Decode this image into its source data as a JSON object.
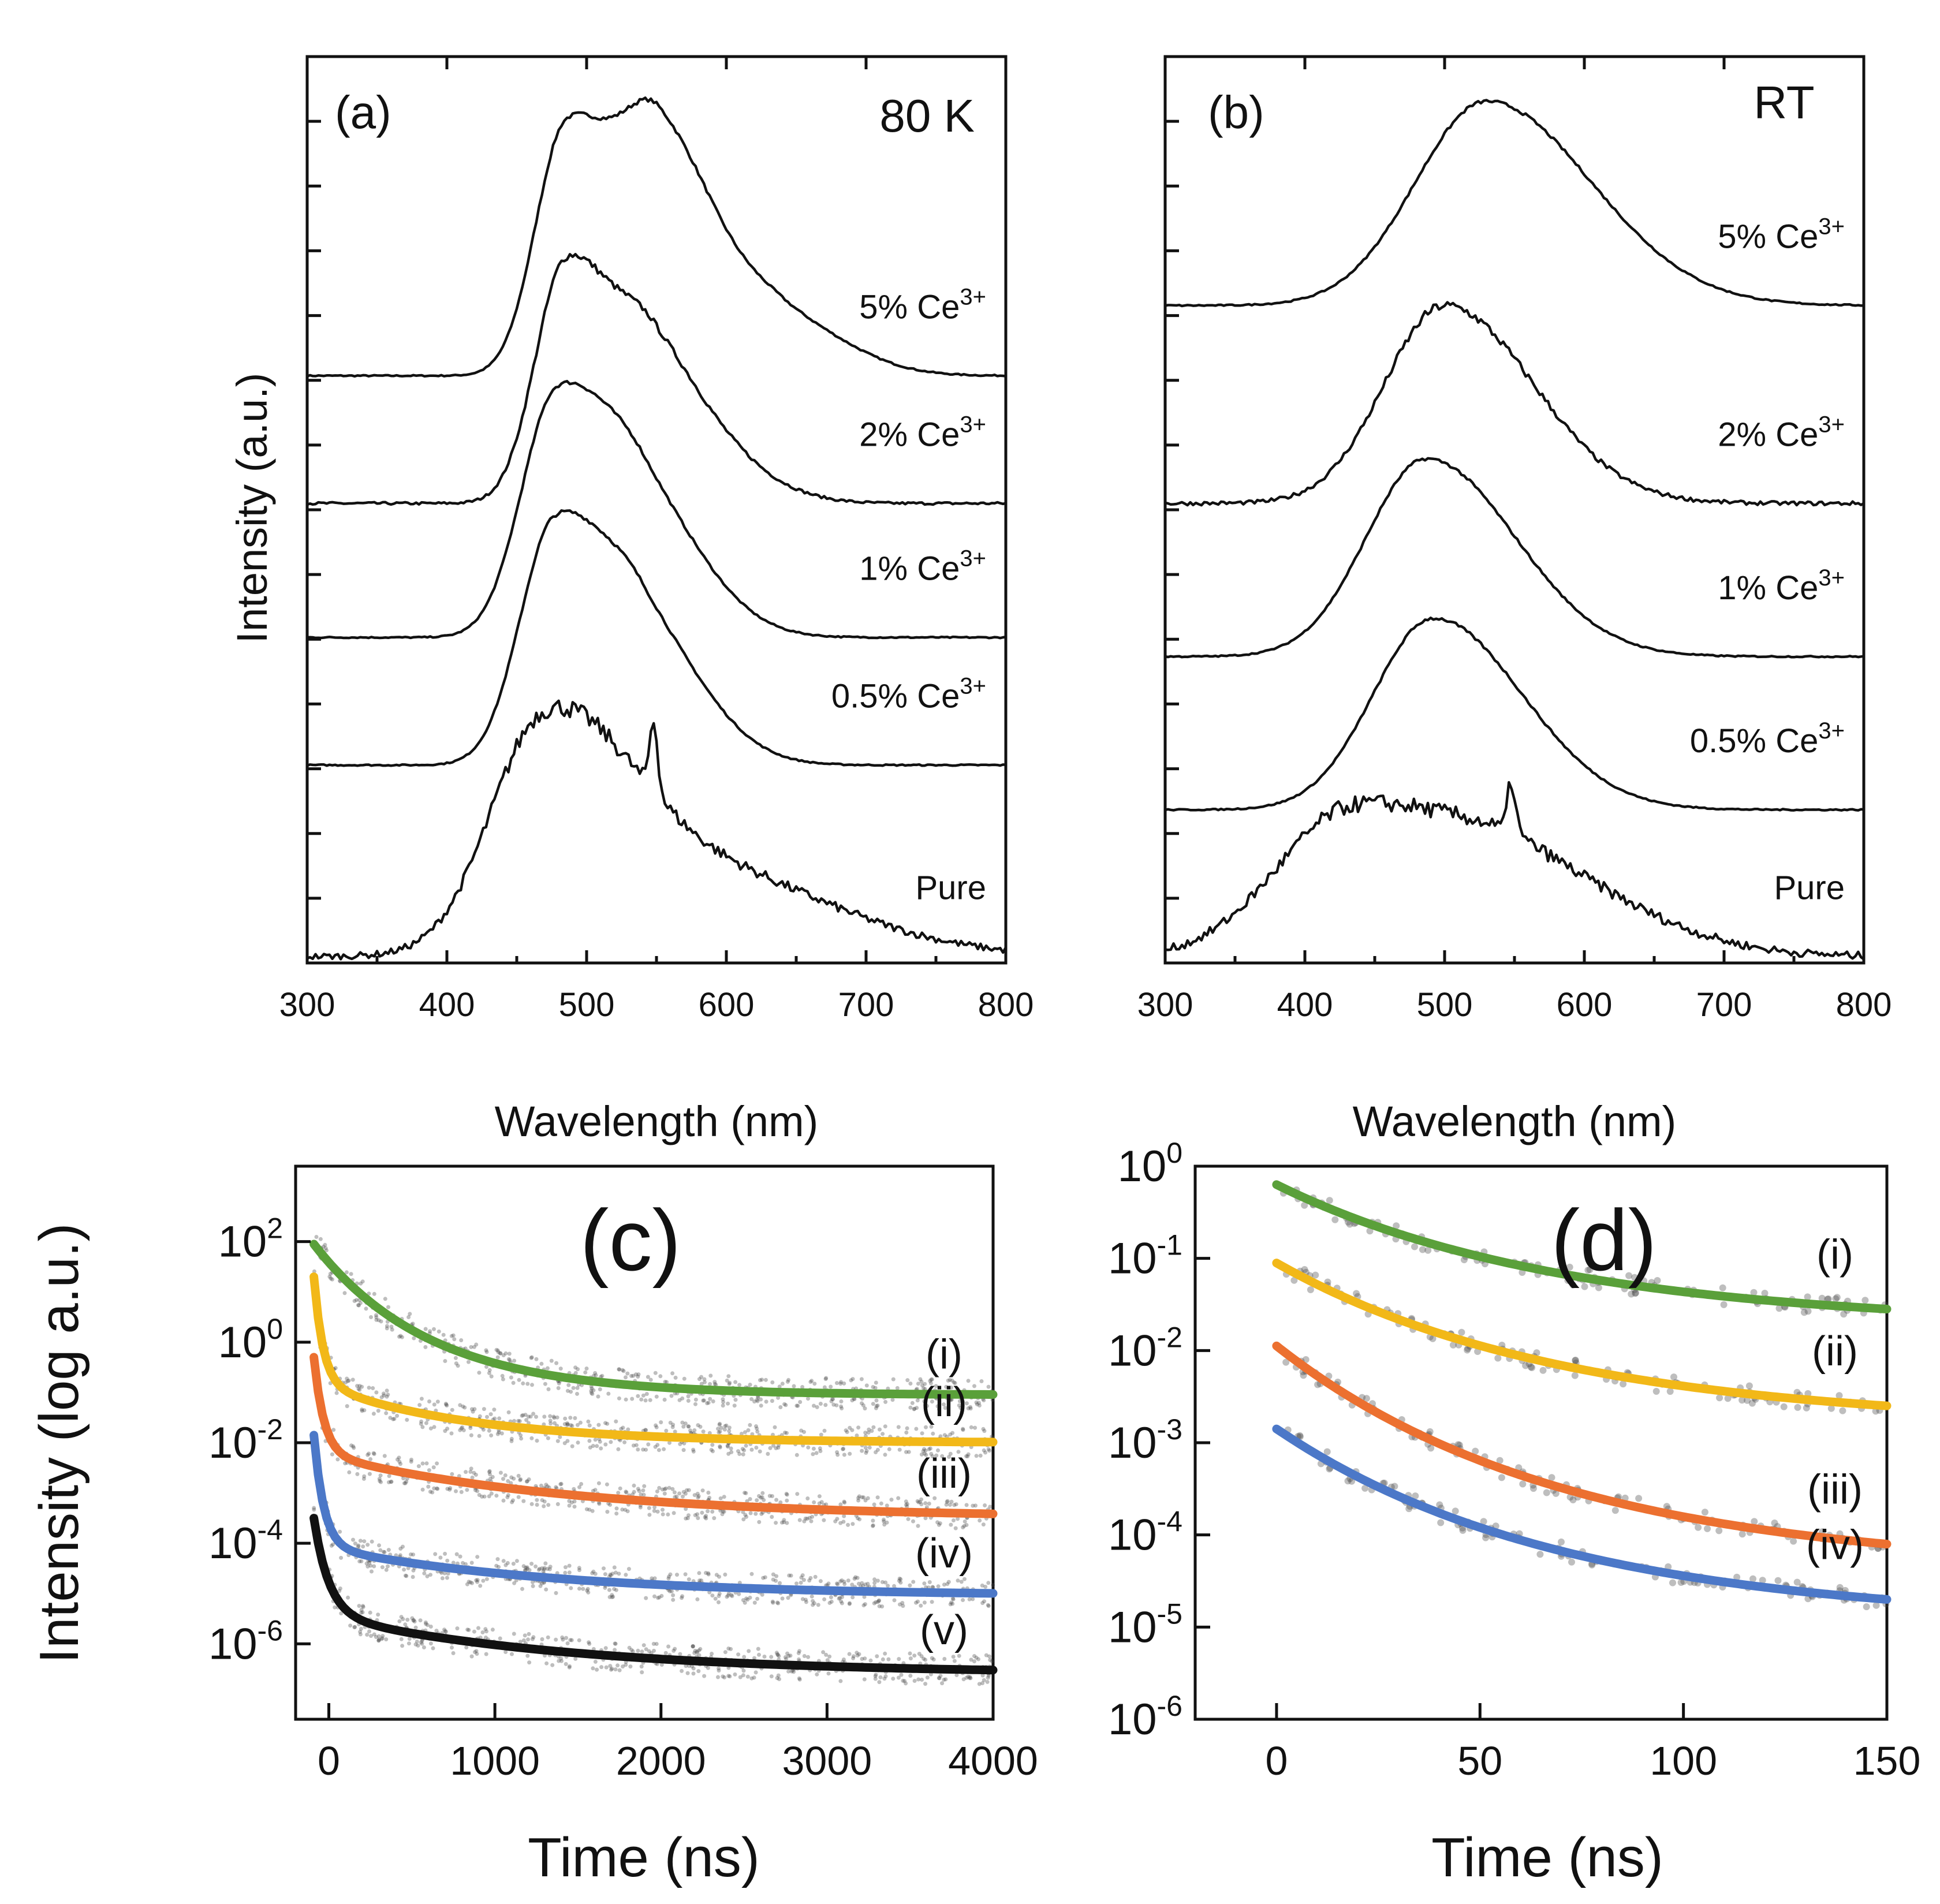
{
  "chart_data": [
    {
      "id": "a",
      "type": "line",
      "panel_label": "(a)",
      "condition": "80 K",
      "xlabel": "Wavelength (nm)",
      "ylabel": "Intensity (a.u.)",
      "xlim": [
        300,
        800
      ],
      "xticks": [
        "300",
        "400",
        "500",
        "600",
        "700",
        "800"
      ],
      "series": [
        {
          "name": "5% Ce",
          "sup": "3+",
          "offset": 4.6,
          "peaks": [
            [
              485,
              1.9,
              28
            ],
            [
              552,
              1.88,
              36
            ],
            [
              640,
              0.42,
              40
            ]
          ],
          "noise": 0.01
        },
        {
          "name": "2% Ce",
          "sup": "3+",
          "offset": 3.6,
          "peaks": [
            [
              485,
              1.85,
              28
            ],
            [
              548,
              1.15,
              35
            ],
            [
              620,
              0.1,
              30
            ]
          ],
          "noise": 0.02
        },
        {
          "name": "1% Ce",
          "sup": "3+",
          "offset": 2.55,
          "peaks": [
            [
              478,
              1.85,
              32
            ],
            [
              540,
              1.0,
              38
            ]
          ],
          "noise": 0.01
        },
        {
          "name": "0.5% Ce",
          "sup": "3+",
          "offset": 1.55,
          "peaks": [
            [
              477,
              1.85,
              32
            ],
            [
              540,
              1.0,
              38
            ]
          ],
          "noise": 0.01
        },
        {
          "name": "Pure",
          "sup": "",
          "offset": 0.05,
          "peaks": [
            [
              468,
              1.6,
              48
            ],
            [
              560,
              0.75,
              90
            ]
          ],
          "noise": 0.05,
          "spike": [
            548,
            0.55
          ]
        }
      ]
    },
    {
      "id": "b",
      "type": "line",
      "panel_label": "(b)",
      "condition": "RT",
      "xlabel": "Wavelength (nm)",
      "ylabel": "",
      "xlim": [
        300,
        800
      ],
      "xticks": [
        "300",
        "400",
        "500",
        "600",
        "700",
        "800"
      ],
      "series": [
        {
          "name": "5% Ce",
          "sup": "3+",
          "offset": 5.15,
          "peaks": [
            [
              530,
              1.6,
              65
            ]
          ],
          "noise": 0.01
        },
        {
          "name": "2% Ce",
          "sup": "3+",
          "offset": 3.6,
          "peaks": [
            [
              500,
              1.55,
              55
            ]
          ],
          "noise": 0.03
        },
        {
          "name": "1% Ce",
          "sup": "3+",
          "offset": 2.4,
          "peaks": [
            [
              487,
              1.55,
              55
            ]
          ],
          "noise": 0.01
        },
        {
          "name": "0.5% Ce",
          "sup": "3+",
          "offset": 1.2,
          "peaks": [
            [
              492,
              1.5,
              55
            ]
          ],
          "noise": 0.01
        },
        {
          "name": "Pure",
          "sup": "",
          "offset": 0.05,
          "peaks": [
            [
              435,
              1.15,
              70
            ],
            [
              560,
              0.55,
              70
            ]
          ],
          "noise": 0.06,
          "spike": [
            548,
            0.4
          ]
        }
      ]
    },
    {
      "id": "c",
      "type": "scatter",
      "panel_label": "(c)",
      "xlabel": "Time (ns)",
      "ylabel": "Intensity (log a.u.)",
      "xlim": [
        -200,
        4000
      ],
      "ylim_log10": [
        -7.5,
        3.5
      ],
      "xticks": [
        "0",
        "1000",
        "2000",
        "3000",
        "4000"
      ],
      "yticks": [
        {
          "base": "10",
          "exp": "2"
        },
        {
          "base": "10",
          "exp": "0"
        },
        {
          "base": "10",
          "exp": "-2"
        },
        {
          "base": "10",
          "exp": "-4"
        },
        {
          "base": "10",
          "exp": "-6"
        }
      ],
      "series": [
        {
          "name": "(i)",
          "color": "#5aa03a",
          "start_log": 1.95,
          "tail_log": -1.05,
          "fast_amp": 0.0,
          "fast_tau": 1,
          "tau": 700
        },
        {
          "name": "(ii)",
          "color": "#f2b818",
          "start_log": 1.3,
          "tail_log": -2.0,
          "fast_amp": 2.1,
          "fast_tau": 55,
          "tau": 900
        },
        {
          "name": "(iii)",
          "color": "#ec7030",
          "start_log": -0.3,
          "tail_log": -3.5,
          "fast_amp": 1.9,
          "fast_tau": 60,
          "tau": 1500
        },
        {
          "name": "(iv)",
          "color": "#4c78c8",
          "start_log": -1.85,
          "tail_log": -5.05,
          "fast_amp": 2.2,
          "fast_tau": 60,
          "tau": 1400
        },
        {
          "name": "(v)",
          "color": "#111111",
          "start_log": -3.5,
          "tail_log": -6.6,
          "fast_amp": 1.9,
          "fast_tau": 90,
          "tau": 1500
        }
      ]
    },
    {
      "id": "d",
      "type": "scatter",
      "panel_label": "(d)",
      "xlabel": "Time (ns)",
      "ylabel": "",
      "xlim": [
        -20,
        150
      ],
      "ylim_log10": [
        -6,
        0
      ],
      "xticks": [
        "0",
        "50",
        "100",
        "150"
      ],
      "yticks": [
        {
          "base": "10",
          "exp": "0"
        },
        {
          "base": "10",
          "exp": "-1"
        },
        {
          "base": "10",
          "exp": "-2"
        },
        {
          "base": "10",
          "exp": "-3"
        },
        {
          "base": "10",
          "exp": "-4"
        },
        {
          "base": "10",
          "exp": "-5"
        },
        {
          "base": "10",
          "exp": "-6"
        }
      ],
      "series": [
        {
          "name": "(i)",
          "color": "#5aa03a",
          "start_log": -0.2,
          "end_log": -1.55
        },
        {
          "name": "(ii)",
          "color": "#f2b818",
          "start_log": -1.05,
          "end_log": -2.6
        },
        {
          "name": "(iii)",
          "color": "#ec7030",
          "start_log": -1.95,
          "end_log": -4.1
        },
        {
          "name": "(iv)",
          "color": "#4c78c8",
          "start_log": -2.85,
          "end_log": -4.7
        }
      ]
    }
  ]
}
